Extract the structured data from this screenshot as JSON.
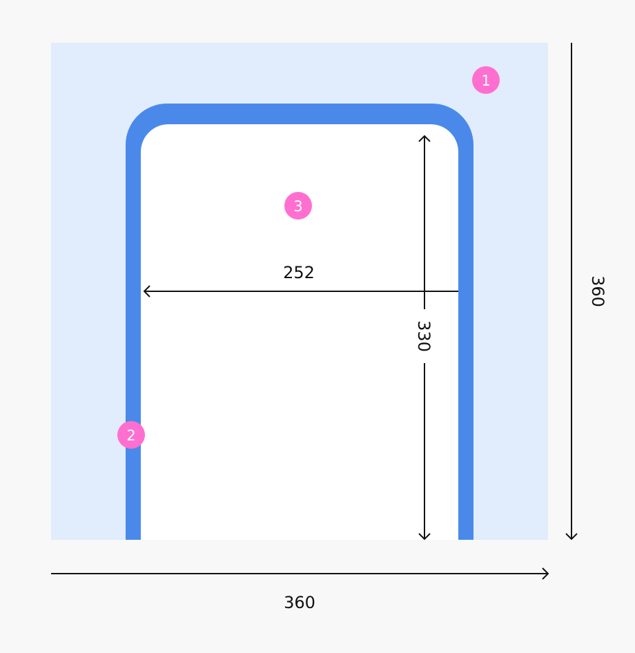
{
  "colors": {
    "canvas": "#e1ecfc",
    "frame": "#4a89ea",
    "screen": "#ffffff",
    "badge": "#ff6fd0",
    "line": "#111111"
  },
  "badges": [
    "1",
    "2",
    "3"
  ],
  "dimensions": {
    "container_width": "360",
    "container_height": "360",
    "screen_width": "252",
    "screen_height": "330"
  }
}
